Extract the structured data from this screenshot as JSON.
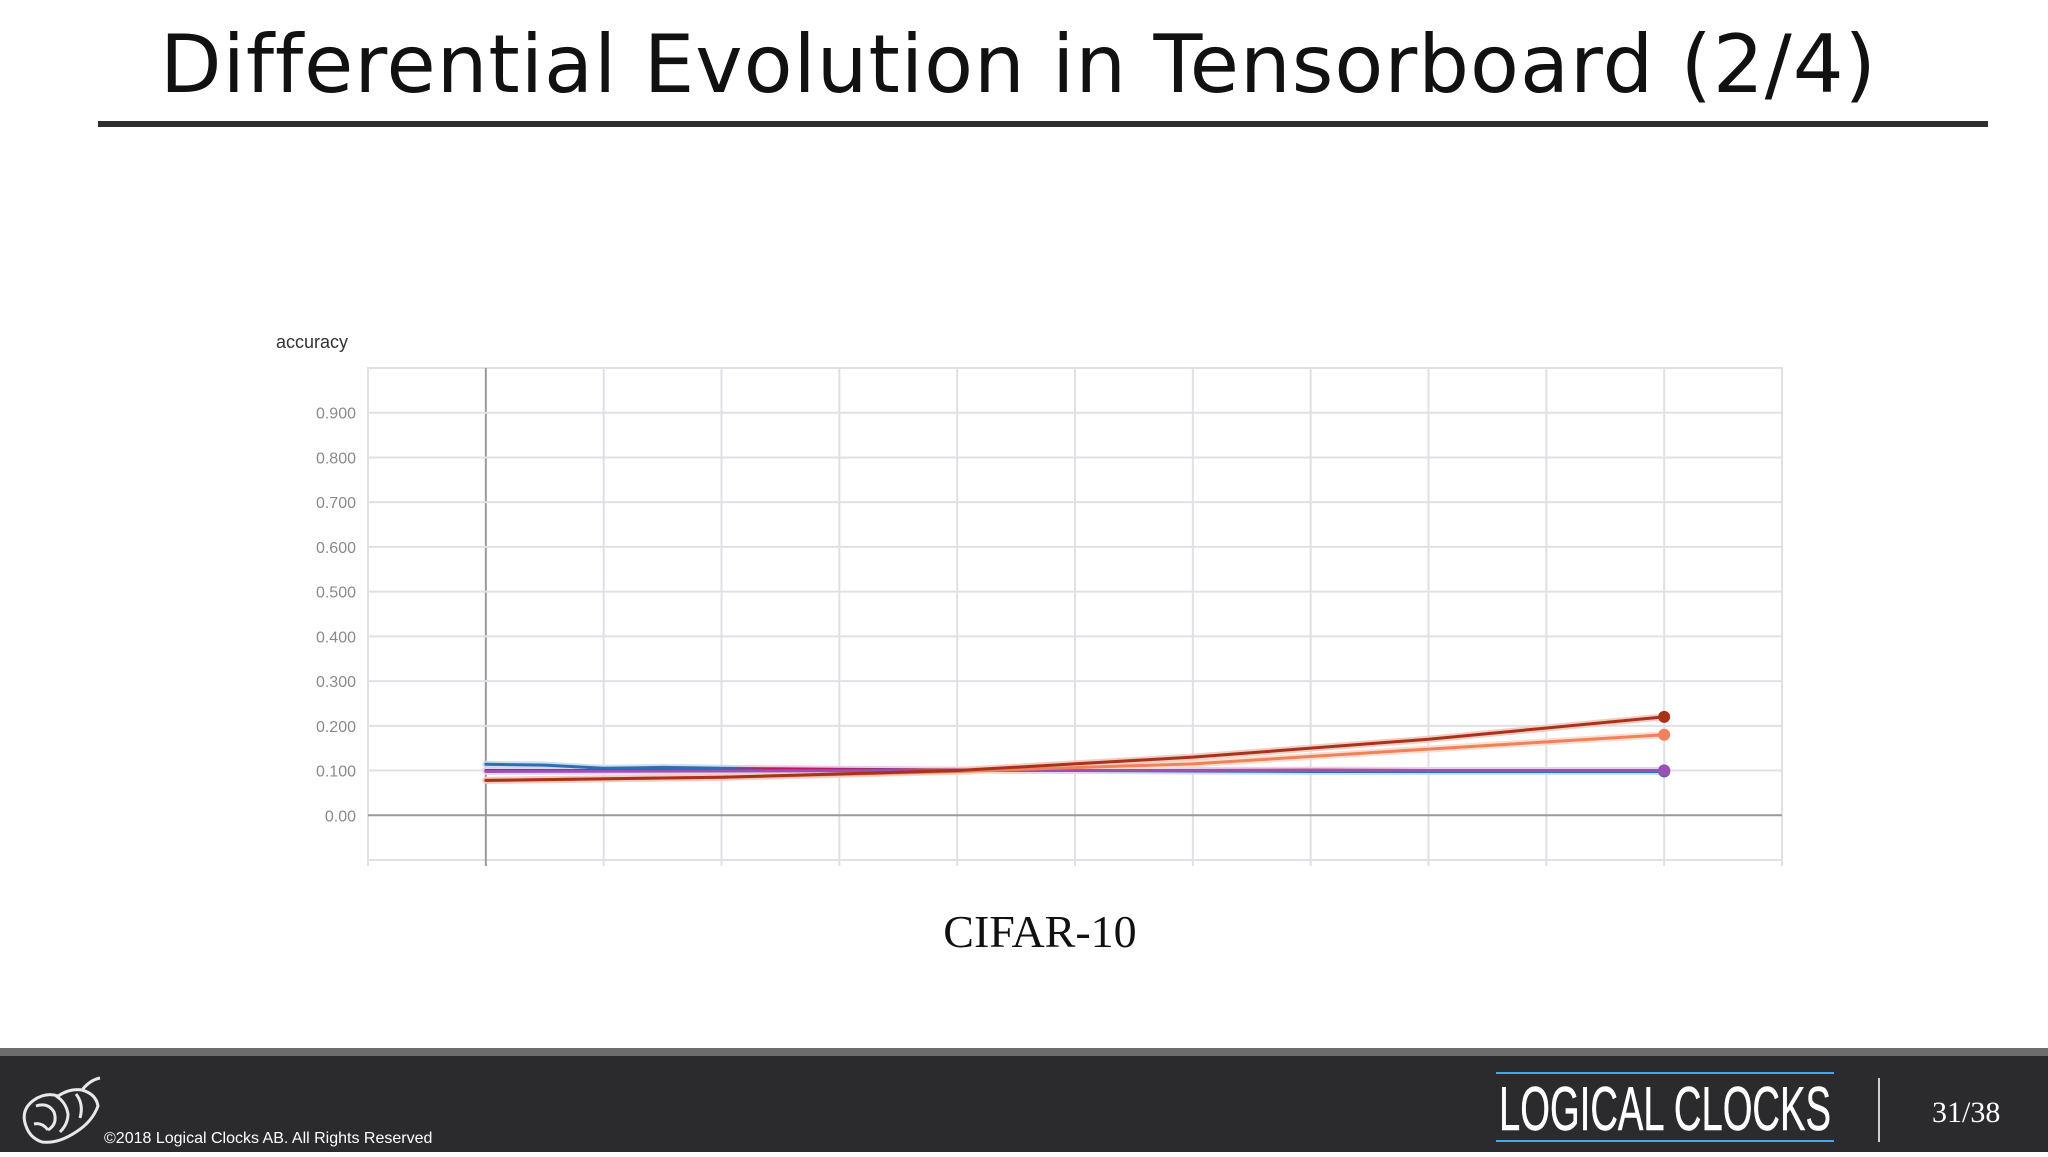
{
  "slide": {
    "title": "Differential Evolution in Tensorboard (2/4)",
    "caption": "CIFAR-10"
  },
  "footer": {
    "copyright": "©2018 Logical Clocks AB. All Rights Reserved",
    "brand": "LOGICAL CLOCKS",
    "page": "31/38"
  },
  "colors": {
    "title_rule": "#2f2f2f",
    "footer_bg": "#2b2b2d",
    "brand_accent": "#3fa9f5",
    "grid": "#e0e0e6",
    "axis": "#9a9a9a"
  },
  "chart_data": {
    "type": "line",
    "title": "accuracy",
    "xlabel": "",
    "ylabel": "",
    "ylim": [
      -0.1,
      1.0
    ],
    "yticks": [
      "0.900",
      "0.800",
      "0.700",
      "0.600",
      "0.500",
      "0.400",
      "0.300",
      "0.200",
      "0.100",
      "0.00"
    ],
    "ytick_values": [
      0.9,
      0.8,
      0.7,
      0.6,
      0.5,
      0.4,
      0.3,
      0.2,
      0.1,
      0.0
    ],
    "xlim": [
      -1,
      11
    ],
    "grid": true,
    "legend": "none",
    "series": [
      {
        "color": "#2e6fb0",
        "smooth": "#c9d9ee",
        "x": [
          0,
          0.5,
          1,
          1.5,
          2,
          2.5,
          3,
          4,
          5,
          6,
          7,
          8,
          9,
          10
        ],
        "values": [
          0.114,
          0.112,
          0.105,
          0.107,
          0.105,
          0.104,
          0.103,
          0.101,
          0.1,
          0.099,
          0.098,
          0.098,
          0.098,
          0.098
        ]
      },
      {
        "color": "#c2185b",
        "smooth": "#f5c7d8",
        "x": [
          0,
          1,
          2,
          2.5,
          3,
          4,
          5,
          6,
          7,
          8,
          9,
          10
        ],
        "values": [
          0.1,
          0.1,
          0.1,
          0.103,
          0.102,
          0.101,
          0.1,
          0.1,
          0.101,
          0.1,
          0.1,
          0.1
        ]
      },
      {
        "color": "#9c4fb5",
        "smooth": "#e6d3ee",
        "x": [
          0,
          2,
          4,
          6,
          8,
          10
        ],
        "values": [
          0.098,
          0.099,
          0.1,
          0.1,
          0.1,
          0.1
        ]
      },
      {
        "color": "#f0825a",
        "smooth": "#fbd9cc",
        "x": [
          0,
          2,
          4,
          6,
          8,
          10
        ],
        "values": [
          0.078,
          0.085,
          0.098,
          0.115,
          0.148,
          0.18
        ]
      },
      {
        "color": "#a8321a",
        "smooth": "#efc9bf",
        "x": [
          0,
          2,
          4,
          6,
          8,
          10
        ],
        "values": [
          0.078,
          0.085,
          0.1,
          0.13,
          0.17,
          0.22
        ]
      }
    ]
  }
}
